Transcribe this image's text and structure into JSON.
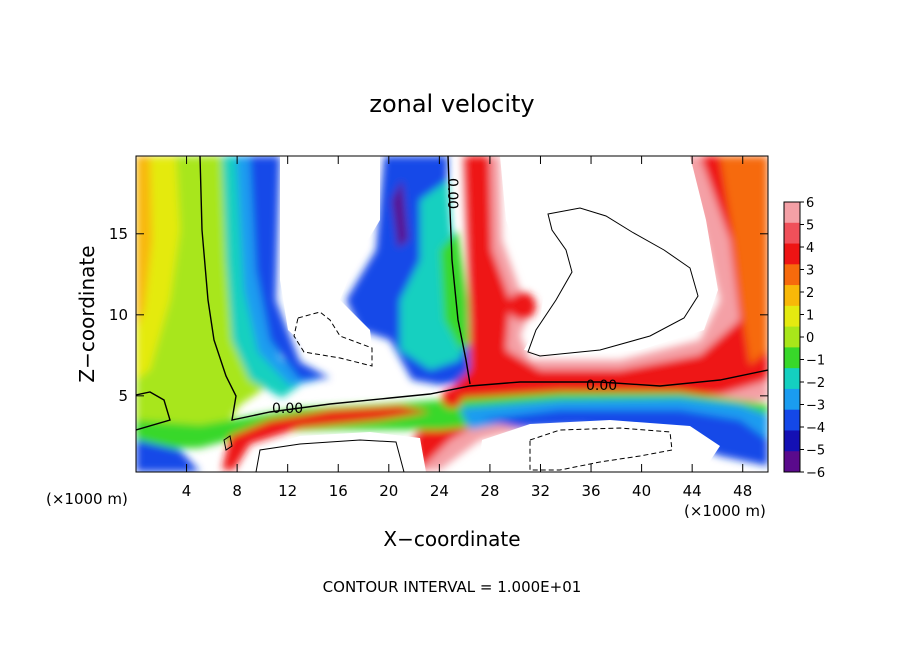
{
  "chart_data": {
    "type": "heatmap",
    "title": "zonal velocity",
    "xlabel": "X−coordinate",
    "ylabel": "Z−coordinate",
    "x_unit": "(×1000 m)",
    "x_unit_right": "(×1000 m)",
    "xlim": [
      0,
      50
    ],
    "ylim": [
      0.3,
      19.8
    ],
    "x_ticks": [
      4,
      8,
      12,
      16,
      20,
      24,
      28,
      32,
      36,
      40,
      44,
      48
    ],
    "y_ticks": [
      5,
      10,
      15
    ],
    "colorbar": {
      "levels": [
        6,
        5,
        4,
        3,
        2,
        1,
        0,
        -1,
        -2,
        -3,
        -4,
        -5,
        -6
      ],
      "tick_labels": [
        "6",
        "5",
        "4",
        "3",
        "2",
        "1",
        "0",
        "−1",
        "−2",
        "−3",
        "−4",
        "−5",
        "−6"
      ],
      "colors": [
        "#f4a0a6",
        "#f0505a",
        "#ee1414",
        "#f66a0c",
        "#f8b808",
        "#e4ea10",
        "#a8e61a",
        "#38d82a",
        "#14d0c0",
        "#1a9cf0",
        "#1448e8",
        "#1410b4",
        "#5a0a8c"
      ]
    },
    "contour_labels": [
      "0.00",
      "0.00",
      "0.00"
    ],
    "footnote": "CONTOUR INTERVAL = 1.000E+01"
  }
}
